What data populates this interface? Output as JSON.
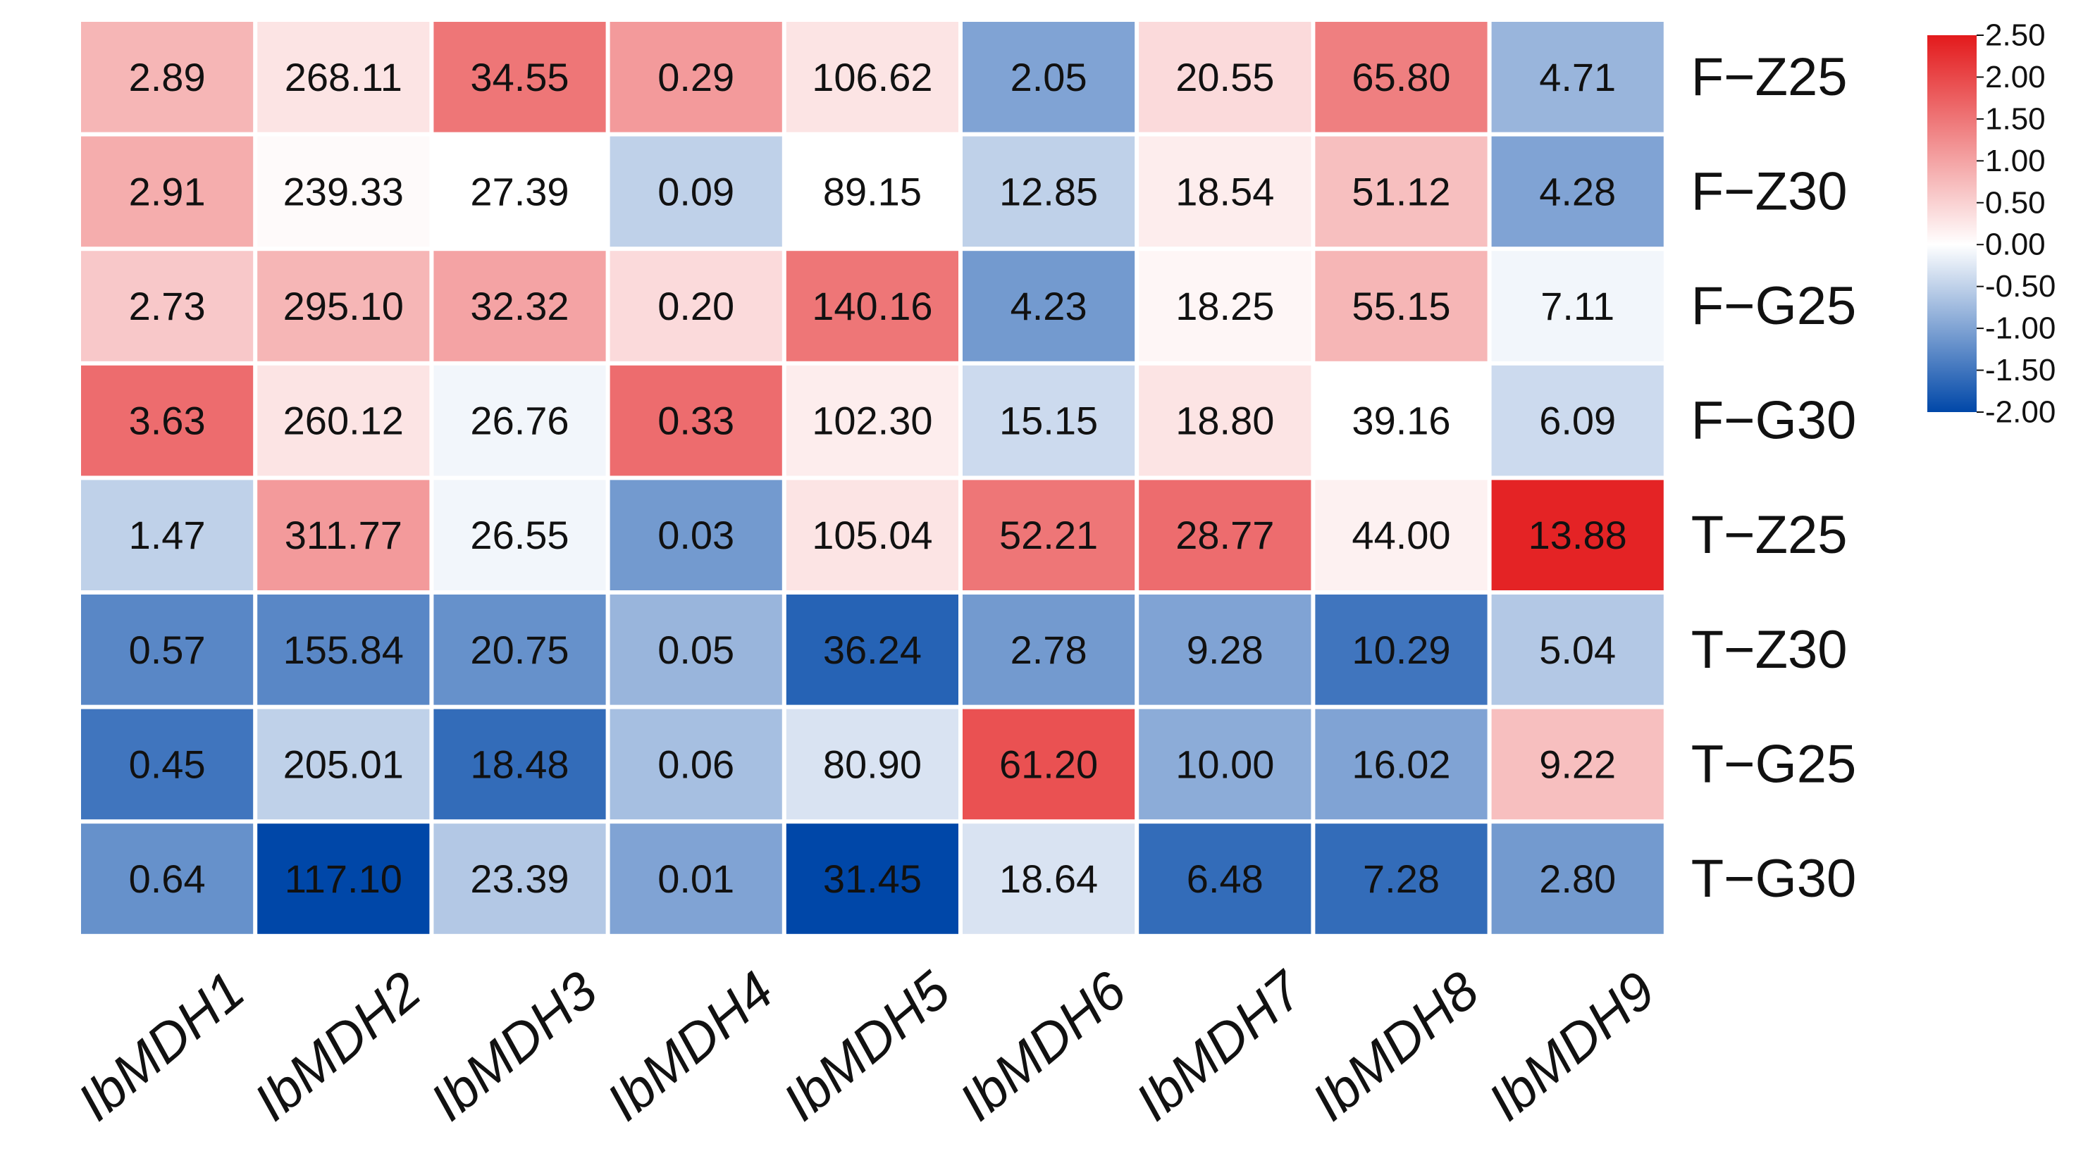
{
  "chart_data": {
    "type": "heatmap",
    "title": "",
    "xlabel": "",
    "ylabel": "",
    "columns": [
      "IbMDH1",
      "IbMDH2",
      "IbMDH3",
      "IbMDH4",
      "IbMDH5",
      "IbMDH6",
      "IbMDH7",
      "IbMDH8",
      "IbMDH9"
    ],
    "rows": [
      "F−Z25",
      "F−Z30",
      "F−G25",
      "F−G30",
      "T−Z25",
      "T−Z30",
      "T−G25",
      "T−G30"
    ],
    "cell_labels": [
      [
        "2.89",
        "268.11",
        "34.55",
        "0.29",
        "106.62",
        "2.05",
        "20.55",
        "65.80",
        "4.71"
      ],
      [
        "2.91",
        "239.33",
        "27.39",
        "0.09",
        "89.15",
        "12.85",
        "18.54",
        "51.12",
        "4.28"
      ],
      [
        "2.73",
        "295.10",
        "32.32",
        "0.20",
        "140.16",
        "4.23",
        "18.25",
        "55.15",
        "7.11"
      ],
      [
        "3.63",
        "260.12",
        "26.76",
        "0.33",
        "102.30",
        "15.15",
        "18.80",
        "39.16",
        "6.09"
      ],
      [
        "1.47",
        "311.77",
        "26.55",
        "0.03",
        "105.04",
        "52.21",
        "28.77",
        "44.00",
        "13.88"
      ],
      [
        "0.57",
        "155.84",
        "20.75",
        "0.05",
        "36.24",
        "2.78",
        "9.28",
        "10.29",
        "5.04"
      ],
      [
        "0.45",
        "205.01",
        "18.48",
        "0.06",
        "80.90",
        "61.20",
        "10.00",
        "16.02",
        "9.22"
      ],
      [
        "0.64",
        "117.10",
        "23.39",
        "0.01",
        "31.45",
        "18.64",
        "6.48",
        "7.28",
        "2.80"
      ]
    ],
    "color_scores": [
      [
        0.8,
        0.3,
        1.5,
        1.1,
        0.3,
        -1.0,
        0.4,
        1.4,
        -0.8
      ],
      [
        0.9,
        0.05,
        0.0,
        -0.5,
        0.0,
        -0.5,
        0.2,
        0.7,
        -1.0
      ],
      [
        0.6,
        0.8,
        1.0,
        0.4,
        1.5,
        -1.1,
        0.1,
        0.8,
        -0.1
      ],
      [
        1.6,
        0.3,
        -0.1,
        1.6,
        0.2,
        -0.4,
        0.3,
        0.0,
        -0.4
      ],
      [
        -0.5,
        1.1,
        -0.1,
        -1.1,
        0.3,
        1.5,
        1.6,
        0.15,
        2.4
      ],
      [
        -1.3,
        -1.3,
        -1.2,
        -0.8,
        -1.7,
        -1.1,
        -1.0,
        -1.5,
        -0.6
      ],
      [
        -1.5,
        -0.5,
        -1.6,
        -0.7,
        -0.3,
        1.9,
        -0.9,
        -1.0,
        0.7
      ],
      [
        -1.2,
        -2.0,
        -0.6,
        -1.0,
        -2.0,
        -0.3,
        -1.6,
        -1.6,
        -1.1
      ]
    ],
    "color_scale": {
      "min": -2.0,
      "max": 2.5,
      "mid": 0.0,
      "low_color": "#0047a8",
      "mid_color": "#ffffff",
      "high_color": "#e31a1c",
      "tick_labels": [
        "2.50",
        "2.00",
        "1.50",
        "1.00",
        "0.50",
        "0.00",
        "-0.50",
        "-1.00",
        "-1.50",
        "-2.00"
      ]
    },
    "legend_position": "top-right",
    "grid": false
  }
}
